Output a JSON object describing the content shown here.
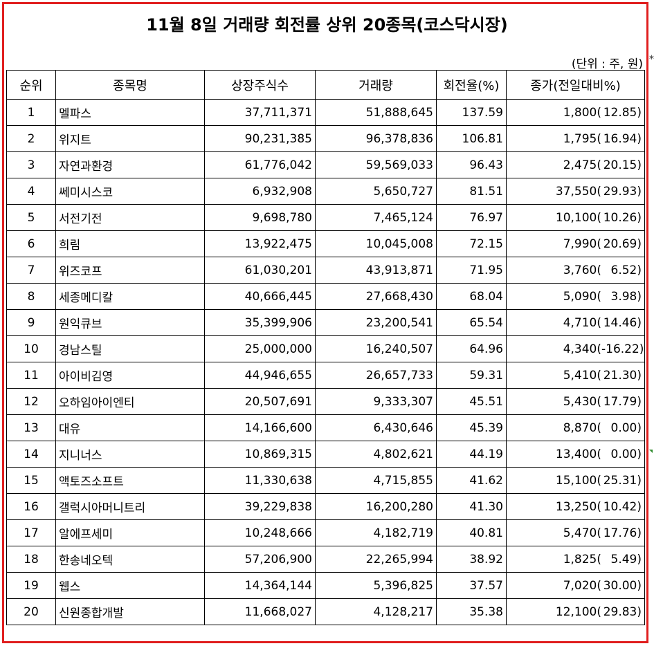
{
  "title": "11월 8일 거래량 회전률 상위 20종목(코스닥시장)",
  "unit_note": "(단위 : 주, 원)",
  "edge_mark": "*",
  "headers": [
    "순위",
    "종목명",
    "상장주식수",
    "거래량",
    "회전율(%)",
    "종가(전일대비%)"
  ],
  "rows": [
    {
      "rank": "1",
      "name": "멜파스",
      "shares": "37,711,371",
      "volume": "51,888,645",
      "turnover": "137.59",
      "close": "1,800(",
      "change": "12.85)"
    },
    {
      "rank": "2",
      "name": "위지트",
      "shares": "90,231,385",
      "volume": "96,378,836",
      "turnover": "106.81",
      "close": "1,795(",
      "change": "16.94)"
    },
    {
      "rank": "3",
      "name": "자연과환경",
      "shares": "61,776,042",
      "volume": "59,569,033",
      "turnover": "96.43",
      "close": "2,475(",
      "change": "20.15)"
    },
    {
      "rank": "4",
      "name": "쎄미시스코",
      "shares": "6,932,908",
      "volume": "5,650,727",
      "turnover": "81.51",
      "close": "37,550(",
      "change": "29.93)"
    },
    {
      "rank": "5",
      "name": "서전기전",
      "shares": "9,698,780",
      "volume": "7,465,124",
      "turnover": "76.97",
      "close": "10,100(",
      "change": "10.26)"
    },
    {
      "rank": "6",
      "name": "희림",
      "shares": "13,922,475",
      "volume": "10,045,008",
      "turnover": "72.15",
      "close": "7,990(",
      "change": "20.69)"
    },
    {
      "rank": "7",
      "name": "위즈코프",
      "shares": "61,030,201",
      "volume": "43,913,871",
      "turnover": "71.95",
      "close": "3,760(",
      "change": "6.52)"
    },
    {
      "rank": "8",
      "name": "세종메디칼",
      "shares": "40,666,445",
      "volume": "27,668,430",
      "turnover": "68.04",
      "close": "5,090(",
      "change": "3.98)"
    },
    {
      "rank": "9",
      "name": "원익큐브",
      "shares": "35,399,906",
      "volume": "23,200,541",
      "turnover": "65.54",
      "close": "4,710(",
      "change": "14.46)"
    },
    {
      "rank": "10",
      "name": "경남스틸",
      "shares": "25,000,000",
      "volume": "16,240,507",
      "turnover": "64.96",
      "close": "4,340(",
      "change": "-16.22)"
    },
    {
      "rank": "11",
      "name": "아이비김영",
      "shares": "44,946,655",
      "volume": "26,657,733",
      "turnover": "59.31",
      "close": "5,410(",
      "change": "21.30)"
    },
    {
      "rank": "12",
      "name": "오하임아이엔티",
      "shares": "20,507,691",
      "volume": "9,333,307",
      "turnover": "45.51",
      "close": "5,430(",
      "change": "17.79)"
    },
    {
      "rank": "13",
      "name": "대유",
      "shares": "14,166,600",
      "volume": "6,430,646",
      "turnover": "45.39",
      "close": "8,870(",
      "change": "0.00)"
    },
    {
      "rank": "14",
      "name": "지니너스",
      "shares": "10,869,315",
      "volume": "4,802,621",
      "turnover": "44.19",
      "close": "13,400(",
      "change": "0.00)"
    },
    {
      "rank": "15",
      "name": "액토즈소프트",
      "shares": "11,330,638",
      "volume": "4,715,855",
      "turnover": "41.62",
      "close": "15,100(",
      "change": "25.31)"
    },
    {
      "rank": "16",
      "name": "갤럭시아머니트리",
      "shares": "39,229,838",
      "volume": "16,200,280",
      "turnover": "41.30",
      "close": "13,250(",
      "change": "10.42)"
    },
    {
      "rank": "17",
      "name": "알에프세미",
      "shares": "10,248,666",
      "volume": "4,182,719",
      "turnover": "40.81",
      "close": "5,470(",
      "change": "17.76)"
    },
    {
      "rank": "18",
      "name": "한송네오텍",
      "shares": "57,206,900",
      "volume": "22,265,994",
      "turnover": "38.92",
      "close": "1,825(",
      "change": "5.49)"
    },
    {
      "rank": "19",
      "name": "웹스",
      "shares": "14,364,144",
      "volume": "5,396,825",
      "turnover": "37.57",
      "close": "7,020(",
      "change": "30.00)"
    },
    {
      "rank": "20",
      "name": "신원종합개발",
      "shares": "11,668,027",
      "volume": "4,128,217",
      "turnover": "35.38",
      "close": "12,100(",
      "change": "29.83)"
    }
  ],
  "colors": {
    "frame": "#e01e1e",
    "grid": "#000000",
    "corner_mark": "#2e8b2e"
  }
}
